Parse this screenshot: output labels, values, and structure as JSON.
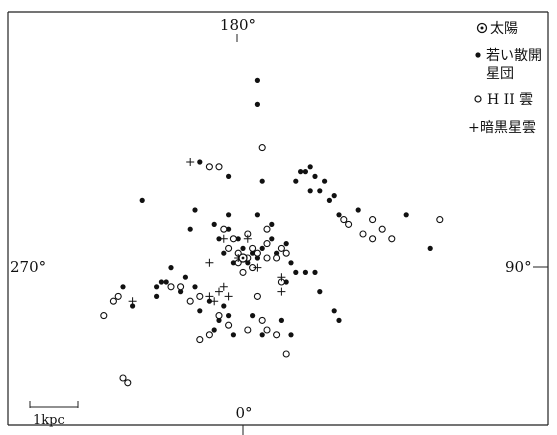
{
  "chart_data": {
    "type": "scatter",
    "title": "",
    "xlabel": "",
    "ylabel": "",
    "xlim": [
      -4.2,
      5.1
    ],
    "ylim": [
      -3.6,
      3.6
    ],
    "grid": false,
    "legend_placement": "top-right",
    "axis_labels": {
      "top": "180°",
      "left": "270°",
      "right": "90°",
      "bottom": "0°"
    },
    "scale_bar": {
      "label": "1kpc",
      "length": 1
    },
    "legend": [
      {
        "symbol": "sun",
        "label": "太陽"
      },
      {
        "symbol": "filled",
        "label_lines": [
          "若い散開",
          "星団"
        ]
      },
      {
        "symbol": "open",
        "label": "H II 雲"
      },
      {
        "symbol": "plus",
        "label": "暗黒星雲"
      }
    ],
    "sun": [
      0,
      0
    ],
    "series": [
      {
        "name": "若い散開星団",
        "symbol": "filled",
        "points": [
          [
            0.3,
            3.7
          ],
          [
            0.3,
            3.2
          ],
          [
            -2.1,
            1.2
          ],
          [
            1.2,
            1.8
          ],
          [
            1.3,
            1.8
          ],
          [
            1.4,
            1.9
          ],
          [
            1.1,
            1.6
          ],
          [
            1.5,
            1.7
          ],
          [
            1.7,
            1.6
          ],
          [
            1.9,
            1.3
          ],
          [
            1.6,
            1.4
          ],
          [
            1.4,
            1.4
          ],
          [
            1.8,
            1.2
          ],
          [
            2.4,
            1.0
          ],
          [
            2.0,
            0.9
          ],
          [
            3.4,
            0.9
          ],
          [
            2.5,
            0.5
          ],
          [
            3.9,
            0.2
          ],
          [
            -0.3,
            1.7
          ],
          [
            -0.9,
            2.0
          ],
          [
            0.4,
            1.6
          ],
          [
            -1.0,
            1.0
          ],
          [
            -1.1,
            0.6
          ],
          [
            -0.6,
            0.7
          ],
          [
            -0.3,
            0.9
          ],
          [
            0.3,
            0.9
          ],
          [
            0.6,
            0.7
          ],
          [
            -0.5,
            0.4
          ],
          [
            -0.3,
            0.6
          ],
          [
            -0.1,
            0.4
          ],
          [
            0.6,
            0.4
          ],
          [
            0.9,
            0.3
          ],
          [
            -0.4,
            0.1
          ],
          [
            0.0,
            0.2
          ],
          [
            0.2,
            0.1
          ],
          [
            0.4,
            0.2
          ],
          [
            0.7,
            0.1
          ],
          [
            -0.2,
            -0.1
          ],
          [
            0.3,
            0.0
          ],
          [
            0.1,
            -0.1
          ],
          [
            1.0,
            -0.1
          ],
          [
            1.1,
            -0.3
          ],
          [
            1.3,
            -0.3
          ],
          [
            1.5,
            -0.3
          ],
          [
            0.9,
            -0.5
          ],
          [
            1.6,
            -0.7
          ],
          [
            1.9,
            -1.1
          ],
          [
            2.0,
            -1.3
          ],
          [
            -1.7,
            -0.5
          ],
          [
            -1.8,
            -0.6
          ],
          [
            -1.6,
            -0.5
          ],
          [
            -1.2,
            -0.4
          ],
          [
            -1.0,
            -0.6
          ],
          [
            -1.3,
            -0.7
          ],
          [
            -1.8,
            -0.8
          ],
          [
            -2.3,
            -1.0
          ],
          [
            -0.7,
            -0.9
          ],
          [
            -0.4,
            -1.0
          ],
          [
            -0.3,
            -1.2
          ],
          [
            -0.5,
            -1.3
          ],
          [
            -0.9,
            -1.1
          ],
          [
            -0.6,
            -1.5
          ],
          [
            0.2,
            -1.2
          ],
          [
            0.8,
            -1.3
          ],
          [
            1.0,
            -1.6
          ],
          [
            0.4,
            -1.6
          ],
          [
            -0.2,
            -1.6
          ],
          [
            -2.5,
            -0.6
          ],
          [
            -1.5,
            -0.2
          ]
        ]
      },
      {
        "name": "H II 雲",
        "symbol": "open",
        "points": [
          [
            0.4,
            2.3
          ],
          [
            -0.7,
            1.9
          ],
          [
            -0.5,
            1.9
          ],
          [
            2.1,
            0.8
          ],
          [
            2.2,
            0.7
          ],
          [
            2.7,
            0.8
          ],
          [
            2.9,
            0.6
          ],
          [
            2.5,
            0.5
          ],
          [
            2.7,
            0.4
          ],
          [
            3.1,
            0.4
          ],
          [
            4.1,
            0.8
          ],
          [
            -0.4,
            0.6
          ],
          [
            -0.2,
            0.4
          ],
          [
            0.1,
            0.5
          ],
          [
            0.5,
            0.3
          ],
          [
            0.8,
            0.2
          ],
          [
            -0.3,
            0.2
          ],
          [
            -0.1,
            0.1
          ],
          [
            0.2,
            0.2
          ],
          [
            0.3,
            0.1
          ],
          [
            0.5,
            0.0
          ],
          [
            0.7,
            0.0
          ],
          [
            0.9,
            0.1
          ],
          [
            -0.1,
            -0.1
          ],
          [
            0.1,
            0.0
          ],
          [
            0.2,
            -0.2
          ],
          [
            0.0,
            -0.3
          ],
          [
            0.8,
            -0.5
          ],
          [
            -1.5,
            -0.6
          ],
          [
            -1.3,
            -0.6
          ],
          [
            -2.6,
            -0.8
          ],
          [
            -2.7,
            -0.9
          ],
          [
            -2.9,
            -1.2
          ],
          [
            -1.1,
            -0.9
          ],
          [
            -0.9,
            -0.8
          ],
          [
            0.3,
            -0.8
          ],
          [
            -0.5,
            -1.2
          ],
          [
            -0.3,
            -1.4
          ],
          [
            -0.7,
            -1.6
          ],
          [
            -0.9,
            -1.7
          ],
          [
            0.1,
            -1.5
          ],
          [
            0.4,
            -1.3
          ],
          [
            0.5,
            -1.5
          ],
          [
            0.7,
            -1.6
          ],
          [
            0.9,
            -2.0
          ],
          [
            -2.5,
            -2.5
          ],
          [
            -2.4,
            -2.6
          ],
          [
            0.5,
            0.6
          ]
        ]
      },
      {
        "name": "暗黒星雲",
        "symbol": "plus",
        "points": [
          [
            -1.1,
            2.0
          ],
          [
            -0.4,
            0.4
          ],
          [
            0.1,
            0.4
          ],
          [
            -0.1,
            0.0
          ],
          [
            0.3,
            -0.2
          ],
          [
            -0.7,
            -0.1
          ],
          [
            0.8,
            -0.4
          ],
          [
            0.8,
            -0.7
          ],
          [
            -2.3,
            -0.9
          ],
          [
            -0.4,
            -0.6
          ],
          [
            -0.5,
            -0.7
          ],
          [
            -0.7,
            -0.8
          ],
          [
            -0.6,
            -0.9
          ],
          [
            -0.3,
            -0.8
          ]
        ]
      }
    ]
  }
}
